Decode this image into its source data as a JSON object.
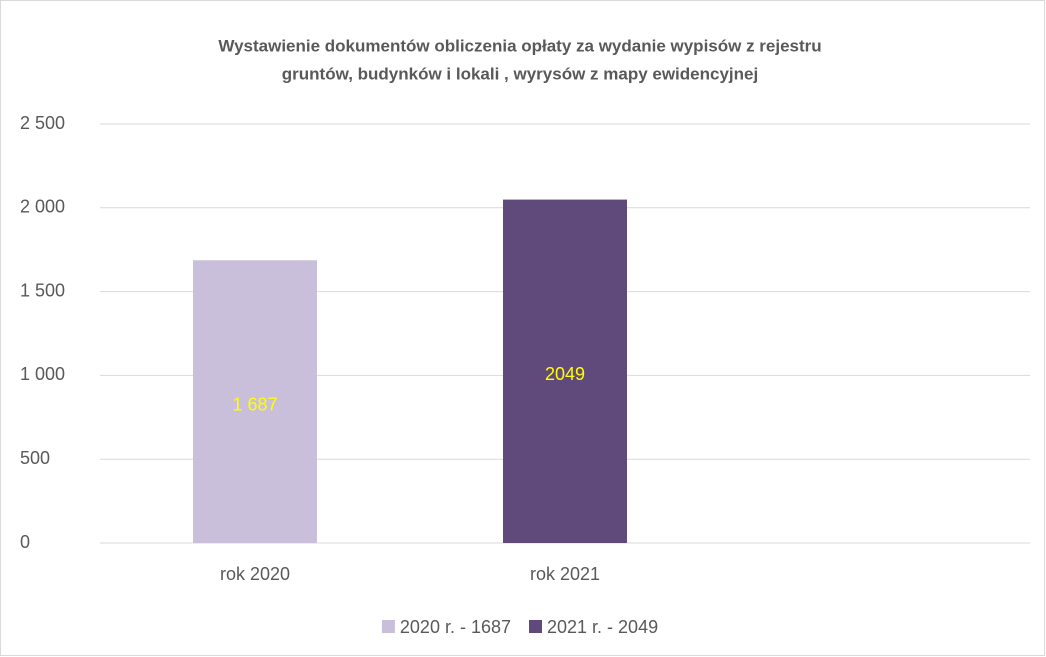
{
  "chart_data": {
    "type": "bar",
    "title": [
      "Wystawienie dokumentów obliczenia opłaty za wydanie wypisów z rejestru",
      "gruntów, budynków i lokali , wyrysów z mapy ewidencyjnej"
    ],
    "categories": [
      "rok 2020",
      "rok 2021",
      null
    ],
    "series": [
      {
        "name": "2020 r. - 1687",
        "color": "#c9bfdb",
        "values": [
          1687,
          null,
          null
        ],
        "value_labels": [
          "1 687",
          null,
          null
        ]
      },
      {
        "name": "2021 r. - 2049",
        "color": "#604a7b",
        "values": [
          null,
          2049,
          null
        ]
      }
    ],
    "label_color": "#ffff00",
    "ylim": [
      0,
      2500
    ],
    "yticks": [
      0,
      500,
      {
        "value": 1000,
        "label": "1 000"
      },
      {
        "value": 1500,
        "label": "1 500"
      },
      {
        "value": 2000,
        "label": "2 000"
      },
      {
        "value": 2500,
        "label": "2 500"
      }
    ],
    "grid": true,
    "legend": "bottom"
  }
}
